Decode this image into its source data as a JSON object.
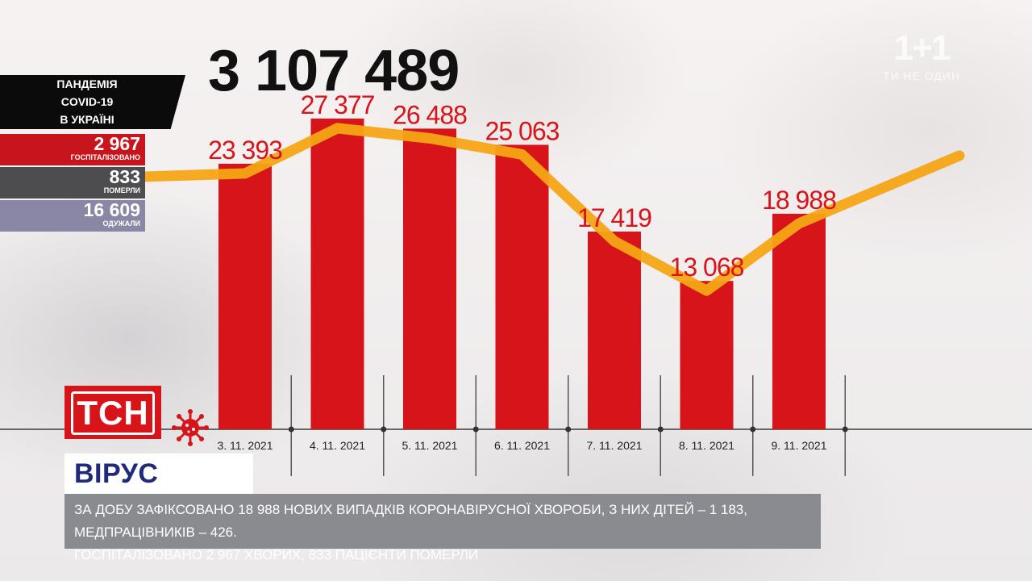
{
  "total_cases": "3 107 489",
  "channel_logo": {
    "name": "1+1",
    "slogan": "ТИ НЕ ОДИН"
  },
  "stats_panel": {
    "title_lines": [
      "ПАНДЕМІЯ",
      "COVID-19",
      "В УКРАЇНІ"
    ],
    "hospitalized": {
      "value": "2 967",
      "label": "ГОСПІТАЛІЗОВАНО",
      "color": "#c8141c"
    },
    "deaths": {
      "value": "833",
      "label": "ПОМЕРЛИ",
      "color": "#4d4d4f"
    },
    "recovered": {
      "value": "16 609",
      "label": "ОДУЖАЛИ",
      "color": "#8a87a6"
    }
  },
  "tsn_logo": "ТСН",
  "heading": "ВІРУС АТАКУЄ",
  "ticker_lines": [
    "ЗА ДОБУ ЗАФІКСОВАНО 18 988 НОВИХ ВИПАДКІВ КОРОНАВІРУСНОЇ ХВОРОБИ, З НИХ ДІТЕЙ – 1 183, МЕДПРАЦІВНИКІВ – 426.",
    "ГОСПІТАЛІЗОВАНО 2 967 ХВОРИХ, 833 ПАЦІЄНТИ ПОМЕРЛИ"
  ],
  "chart_data": {
    "type": "bar",
    "categories": [
      "3. 11. 2021",
      "4. 11. 2021",
      "5. 11. 2021",
      "6. 11. 2021",
      "7. 11. 2021",
      "8. 11. 2021",
      "9. 11. 2021"
    ],
    "values": [
      23393,
      27377,
      26488,
      25063,
      17419,
      13068,
      18988
    ],
    "value_labels": [
      "23 393",
      "27 377",
      "26 488",
      "25 063",
      "17 419",
      "13 068",
      "18 988"
    ],
    "trend_line": true,
    "colors": {
      "bars": "#d7141a",
      "labels": "#d7141a",
      "trend": "#f5a516",
      "axis": "#666666"
    },
    "ylim": [
      0,
      30000
    ]
  }
}
